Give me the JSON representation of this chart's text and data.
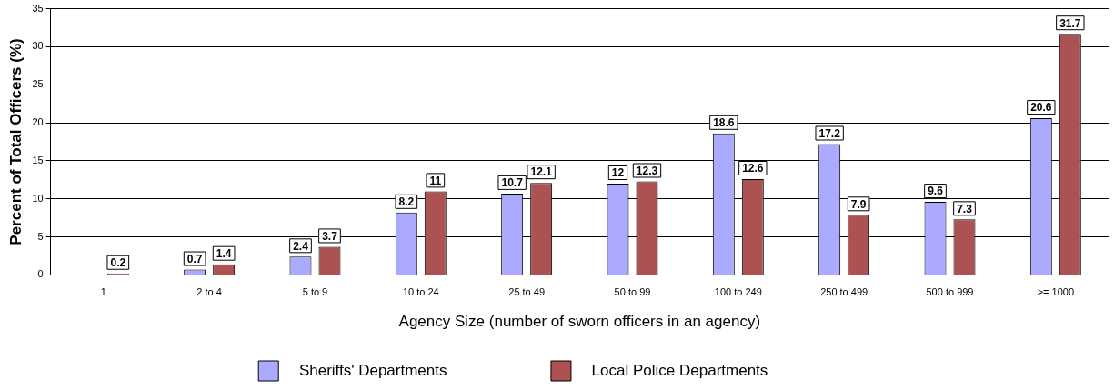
{
  "chart_data": {
    "type": "bar",
    "xlabel": "Agency Size (number of sworn officers in an agency)",
    "ylabel": "Percent of Total Officers (%)",
    "categories": [
      "1",
      "2 to 4",
      "5 to 9",
      "10 to 24",
      "25 to 49",
      "50 to 99",
      "100 to 249",
      "250 to 499",
      "500 to 999",
      ">= 1000"
    ],
    "series": [
      {
        "name": "Sheriffs' Departments",
        "color": "#aaaaff",
        "values": [
          null,
          0.7,
          2.4,
          8.2,
          10.7,
          12,
          18.6,
          17.2,
          9.6,
          20.6
        ]
      },
      {
        "name": "Local Police Departments",
        "color": "#ac5252",
        "values": [
          0.2,
          1.4,
          3.7,
          11,
          12.1,
          12.3,
          12.6,
          7.9,
          7.3,
          31.7
        ]
      }
    ],
    "ylim": [
      0,
      35
    ],
    "yticks": [
      0,
      5,
      10,
      15,
      20,
      25,
      30,
      35
    ],
    "grid": "y",
    "legend": "bottom",
    "data_labels": true
  }
}
